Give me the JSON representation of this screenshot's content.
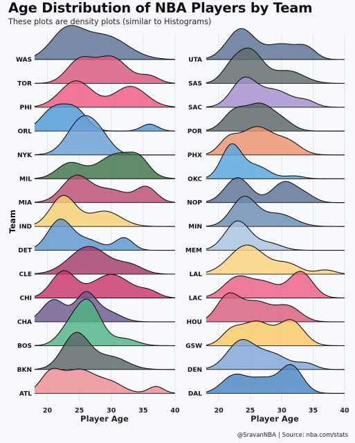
{
  "title": "Age Distribution of NBA Players by Team",
  "subtitle": "These plots are density plots (similar to Histograms)",
  "caption": {
    "author": "@SravanNBA",
    "separator": "|",
    "source": "Source: nba.com/stats"
  },
  "y_axis_label": "Team",
  "chart_data": [
    {
      "type": "ridgeline-density",
      "xlabel": "Player Age",
      "xlim": [
        18,
        40
      ],
      "xticks": [
        20,
        25,
        30,
        35,
        40
      ],
      "grid": true,
      "teams": [
        {
          "name": "WAS",
          "color": "#5d7196",
          "peaks": [
            [
              23,
              1.0,
              2.5
            ],
            [
              29,
              0.85,
              3.5
            ]
          ]
        },
        {
          "name": "TOR",
          "color": "#d9587c",
          "peaks": [
            [
              25,
              0.8,
              2.0
            ],
            [
              30,
              0.95,
              2.5
            ],
            [
              36,
              0.25,
              1.5
            ]
          ]
        },
        {
          "name": "PHI",
          "color": "#ee5a7e",
          "peaks": [
            [
              24.5,
              0.95,
              2.5
            ],
            [
              33,
              0.75,
              2.5
            ]
          ]
        },
        {
          "name": "ORL",
          "color": "#4e9ad8",
          "peaks": [
            [
              21,
              0.8,
              2.0
            ],
            [
              24.5,
              0.7,
              1.8
            ],
            [
              36,
              0.25,
              1.3
            ]
          ]
        },
        {
          "name": "NYK",
          "color": "#6a9fd4",
          "peaks": [
            [
              25.5,
              1.3,
              2.3
            ],
            [
              28.5,
              0.4,
              1.8
            ]
          ]
        },
        {
          "name": "MIL",
          "color": "#3e7448",
          "peaks": [
            [
              23.5,
              0.55,
              2.0
            ],
            [
              31,
              0.9,
              3.0
            ],
            [
              34.5,
              0.4,
              1.5
            ]
          ]
        },
        {
          "name": "MIA",
          "color": "#b94e72",
          "peaks": [
            [
              24.5,
              0.95,
              2.2
            ],
            [
              30,
              0.45,
              2.5
            ],
            [
              35.5,
              0.55,
              1.6
            ]
          ]
        },
        {
          "name": "IND",
          "color": "#f6cf70",
          "peaks": [
            [
              22.5,
              1.1,
              2.0
            ],
            [
              29,
              0.55,
              2.5
            ]
          ]
        },
        {
          "name": "DET",
          "color": "#5b96cc",
          "peaks": [
            [
              22,
              1.1,
              1.9
            ],
            [
              26.5,
              0.35,
              2.0
            ],
            [
              32,
              0.45,
              1.4
            ]
          ]
        },
        {
          "name": "CLE",
          "color": "#a23c6a",
          "peaks": [
            [
              26.5,
              1.0,
              3.0
            ],
            [
              33,
              0.3,
              2.0
            ]
          ]
        },
        {
          "name": "CHI",
          "color": "#c8356c",
          "peaks": [
            [
              22.5,
              0.95,
              1.9
            ],
            [
              30,
              0.85,
              3.0
            ],
            [
              36,
              0.2,
              1.5
            ]
          ]
        },
        {
          "name": "CHA",
          "color": "#6e5a8e",
          "peaks": [
            [
              21,
              0.8,
              1.8
            ],
            [
              26,
              1.0,
              1.6
            ],
            [
              29.5,
              0.35,
              2.0
            ]
          ]
        },
        {
          "name": "BOS",
          "color": "#4fb584",
          "peaks": [
            [
              23.5,
              0.6,
              1.8
            ],
            [
              26.5,
              1.5,
              1.9
            ],
            [
              32,
              0.25,
              2.0
            ]
          ]
        },
        {
          "name": "BKN",
          "color": "#5a6667",
          "peaks": [
            [
              24.5,
              1.3,
              2.1
            ],
            [
              30,
              0.45,
              2.5
            ]
          ]
        },
        {
          "name": "ATL",
          "color": "#ed8d93",
          "peaks": [
            [
              20.5,
              0.7,
              1.6
            ],
            [
              25,
              0.85,
              2.5
            ],
            [
              30,
              0.35,
              2.0
            ],
            [
              37,
              0.25,
              1.2
            ]
          ]
        }
      ]
    },
    {
      "type": "ridgeline-density",
      "xlabel": "Player Age",
      "xlim": [
        18,
        40
      ],
      "xticks": [
        20,
        25,
        30,
        35,
        40
      ],
      "grid": true,
      "teams": [
        {
          "name": "UTA",
          "color": "#5d7196",
          "peaks": [
            [
              23.5,
              1.1,
              2.2
            ],
            [
              30,
              0.55,
              2.5
            ],
            [
              34,
              0.35,
              1.5
            ]
          ]
        },
        {
          "name": "SAS",
          "color": "#5f6a6b",
          "peaks": [
            [
              22,
              0.5,
              1.6
            ],
            [
              25,
              1.15,
              2.0
            ],
            [
              31,
              0.45,
              2.5
            ]
          ]
        },
        {
          "name": "SAC",
          "color": "#a58fce",
          "peaks": [
            [
              24,
              1.0,
              2.0
            ],
            [
              29,
              0.6,
              2.5
            ],
            [
              34,
              0.2,
              1.5
            ]
          ]
        },
        {
          "name": "POR",
          "color": "#5a6667",
          "peaks": [
            [
              22.5,
              0.7,
              1.8
            ],
            [
              26.5,
              0.9,
              2.0
            ],
            [
              30,
              0.35,
              1.8
            ]
          ]
        },
        {
          "name": "PHX",
          "color": "#ec936e",
          "peaks": [
            [
              21.5,
              0.5,
              1.5
            ],
            [
              26,
              1.0,
              2.5
            ],
            [
              31,
              0.45,
              2.0
            ]
          ]
        },
        {
          "name": "OKC",
          "color": "#58a6de",
          "peaks": [
            [
              22,
              1.2,
              1.6
            ],
            [
              26,
              0.45,
              2.0
            ],
            [
              32,
              0.1,
              1.5
            ]
          ]
        },
        {
          "name": "NOP",
          "color": "#5d7196",
          "peaks": [
            [
              23,
              0.9,
              2.0
            ],
            [
              30.5,
              0.75,
              2.0
            ],
            [
              34,
              0.2,
              1.5
            ]
          ]
        },
        {
          "name": "MIN",
          "color": "#6b8cb0",
          "peaks": [
            [
              24,
              1.05,
              2.0
            ],
            [
              29.5,
              0.45,
              2.5
            ]
          ]
        },
        {
          "name": "MEM",
          "color": "#aac4e2",
          "peaks": [
            [
              23,
              1.05,
              2.0
            ],
            [
              28,
              0.25,
              2.0
            ]
          ]
        },
        {
          "name": "LAL",
          "color": "#fcd37e",
          "peaks": [
            [
              24.5,
              1.05,
              2.8
            ],
            [
              31,
              0.35,
              2.0
            ],
            [
              37,
              0.15,
              1.5
            ]
          ]
        },
        {
          "name": "LAC",
          "color": "#ee5e82",
          "peaks": [
            [
              23,
              0.75,
              2.2
            ],
            [
              27.5,
              0.5,
              2.0
            ],
            [
              33,
              0.95,
              1.9
            ]
          ]
        },
        {
          "name": "HOU",
          "color": "#d85e7c",
          "peaks": [
            [
              21.5,
              0.95,
              1.8
            ],
            [
              26,
              0.7,
              2.2
            ],
            [
              31,
              0.55,
              2.0
            ]
          ]
        },
        {
          "name": "GSW",
          "color": "#f8c963",
          "peaks": [
            [
              22,
              0.5,
              1.6
            ],
            [
              26,
              0.85,
              2.2
            ],
            [
              31.5,
              0.9,
              2.0
            ]
          ]
        },
        {
          "name": "DEN",
          "color": "#7fa6d8",
          "peaks": [
            [
              23.5,
              1.0,
              2.2
            ],
            [
              28.5,
              0.55,
              2.5
            ],
            [
              34,
              0.2,
              1.5
            ]
          ]
        },
        {
          "name": "DAL",
          "color": "#4a86c2",
          "peaks": [
            [
              22.5,
              0.65,
              2.0
            ],
            [
              27,
              0.5,
              2.0
            ],
            [
              31.5,
              1.0,
              1.8
            ]
          ]
        }
      ]
    }
  ]
}
